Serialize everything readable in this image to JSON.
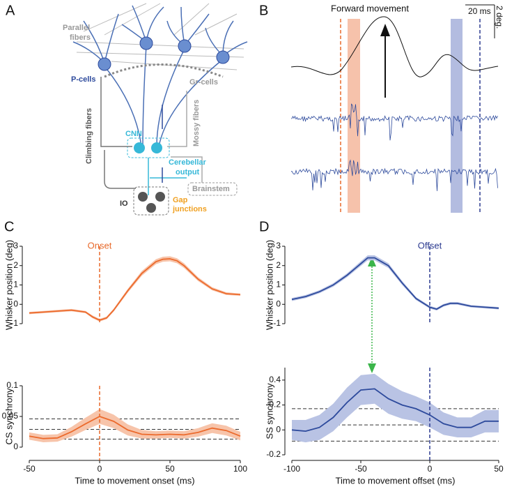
{
  "panel_labels": [
    "A",
    "B",
    "C",
    "D"
  ],
  "diagram": {
    "parallel_fibers": [
      "Parallel",
      "fibers"
    ],
    "p_cells": "P-cells",
    "gr_cells": "Gr-cells",
    "climbing_fibers": "Climbing fibers",
    "mossy_fibers": "Mossy fibers",
    "cnn": "CNN",
    "cerebellar_output": [
      "Cerebellar",
      "output"
    ],
    "brainstem": "Brainstem",
    "io": "IO",
    "gap_junctions": [
      "Gap",
      "junctions"
    ]
  },
  "traces": {
    "title": "Forward movement",
    "time_scale": "20 ms",
    "position_scale": "2 deg."
  },
  "chart_data": [
    {
      "type": "line",
      "ylabel": "Whisker position (deg)",
      "xlim": [
        -50,
        100
      ],
      "ylim": [
        -1,
        3
      ],
      "yticks": [
        -1,
        0,
        1,
        2,
        3
      ],
      "vline": 0,
      "vline_label": "Onset",
      "vline_color": "#e8692a",
      "x": [
        -50,
        -40,
        -30,
        -20,
        -10,
        -5,
        0,
        5,
        10,
        20,
        30,
        40,
        45,
        50,
        55,
        60,
        70,
        80,
        90,
        100
      ],
      "series": [
        {
          "color": "#ec6a2c",
          "band_color": "#f7c4aa",
          "values": [
            -0.45,
            -0.4,
            -0.35,
            -0.3,
            -0.4,
            -0.65,
            -0.82,
            -0.7,
            -0.3,
            0.7,
            1.6,
            2.2,
            2.33,
            2.35,
            2.25,
            2.0,
            1.3,
            0.8,
            0.55,
            0.5
          ],
          "error": [
            0.06,
            0.06,
            0.06,
            0.06,
            0.06,
            0.07,
            0.07,
            0.07,
            0.08,
            0.1,
            0.12,
            0.13,
            0.13,
            0.13,
            0.13,
            0.12,
            0.1,
            0.08,
            0.07,
            0.06
          ]
        }
      ]
    },
    {
      "type": "line",
      "ylabel": "CS synchrony",
      "xlabel": "Time to movement onset (ms)",
      "xlim": [
        -50,
        100
      ],
      "xticks": [
        -50,
        0,
        50,
        100
      ],
      "ylim": [
        0,
        0.1
      ],
      "yticks": [
        0,
        0.05,
        0.1
      ],
      "hlines": [
        0.046,
        0.029,
        0.013
      ],
      "vline": 0,
      "vline_color": "#e8692a",
      "x": [
        -50,
        -40,
        -30,
        -20,
        -10,
        0,
        10,
        20,
        30,
        40,
        50,
        60,
        70,
        80,
        90,
        100
      ],
      "series": [
        {
          "color": "#ec6a2c",
          "band_color": "#f7c4aa",
          "values": [
            0.018,
            0.014,
            0.015,
            0.025,
            0.038,
            0.05,
            0.042,
            0.028,
            0.021,
            0.02,
            0.021,
            0.02,
            0.024,
            0.031,
            0.027,
            0.018
          ],
          "error": [
            0.006,
            0.006,
            0.006,
            0.008,
            0.01,
            0.012,
            0.011,
            0.009,
            0.007,
            0.006,
            0.006,
            0.006,
            0.007,
            0.008,
            0.008,
            0.007
          ]
        }
      ]
    },
    {
      "type": "line",
      "ylabel": "Whisker position (deg)",
      "xlim": [
        -100,
        50
      ],
      "ylim": [
        -1,
        3
      ],
      "yticks": [
        -1,
        0,
        1,
        2,
        3
      ],
      "vline": 0,
      "vline_label": "Offset",
      "vline_color": "#2b3a8f",
      "x": [
        -100,
        -90,
        -80,
        -70,
        -60,
        -50,
        -45,
        -40,
        -30,
        -20,
        -10,
        0,
        5,
        10,
        15,
        20,
        30,
        40,
        50
      ],
      "series": [
        {
          "color": "#2d4a9c",
          "band_color": "#b9c3e4",
          "values": [
            0.25,
            0.4,
            0.65,
            1.0,
            1.5,
            2.1,
            2.4,
            2.4,
            2.0,
            1.1,
            0.3,
            -0.15,
            -0.25,
            -0.05,
            0.05,
            0.05,
            -0.1,
            -0.15,
            -0.2
          ],
          "error": [
            0.08,
            0.08,
            0.08,
            0.09,
            0.1,
            0.12,
            0.13,
            0.13,
            0.12,
            0.1,
            0.08,
            0.07,
            0.07,
            0.07,
            0.07,
            0.07,
            0.06,
            0.06,
            0.06
          ]
        }
      ]
    },
    {
      "type": "line",
      "ylabel": "SS synchrony",
      "xlabel": "Time to movement offset (ms)",
      "xlim": [
        -100,
        50
      ],
      "xticks": [
        -100,
        -50,
        0,
        50
      ],
      "ylim": [
        -0.2,
        0.5
      ],
      "yticks": [
        -0.2,
        0,
        0.2,
        0.4
      ],
      "hlines": [
        0.17,
        0.04,
        -0.09
      ],
      "vline": 0,
      "vline_color": "#2b3a8f",
      "x": [
        -100,
        -90,
        -80,
        -70,
        -60,
        -50,
        -40,
        -30,
        -20,
        -10,
        0,
        10,
        20,
        30,
        40,
        50
      ],
      "series": [
        {
          "color": "#2d4a9c",
          "band_color": "#b9c3e4",
          "values": [
            0,
            -0.01,
            0.02,
            0.1,
            0.22,
            0.32,
            0.33,
            0.25,
            0.2,
            0.17,
            0.12,
            0.05,
            0.02,
            0.02,
            0.07,
            0.07
          ],
          "error": [
            0.08,
            0.09,
            0.1,
            0.11,
            0.12,
            0.12,
            0.12,
            0.12,
            0.11,
            0.1,
            0.1,
            0.09,
            0.08,
            0.08,
            0.09,
            0.09
          ]
        }
      ]
    }
  ]
}
